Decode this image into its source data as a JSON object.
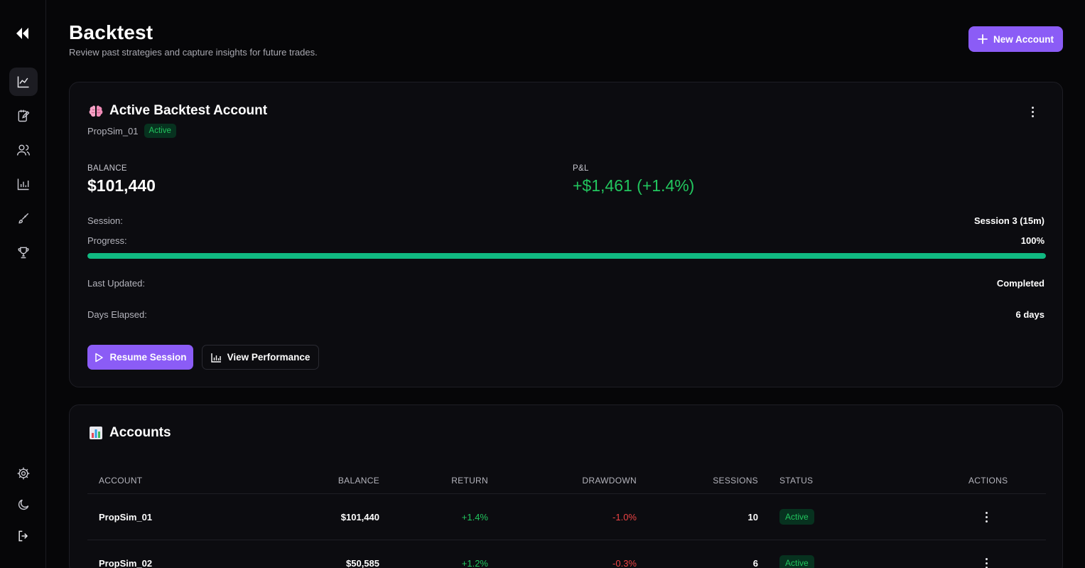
{
  "header": {
    "title": "Backtest",
    "subtitle": "Review past strategies and capture insights for future trades.",
    "new_account_label": "New Account"
  },
  "sidebar": {
    "items": [
      {
        "icon": "chart-line-icon",
        "active": true
      },
      {
        "icon": "journal-icon",
        "active": false
      },
      {
        "icon": "users-icon",
        "active": false
      },
      {
        "icon": "bar-chart-icon",
        "active": false
      },
      {
        "icon": "brush-icon",
        "active": false
      },
      {
        "icon": "trophy-icon",
        "active": false
      }
    ],
    "bottom_items": [
      {
        "icon": "settings-icon"
      },
      {
        "icon": "moon-icon"
      },
      {
        "icon": "logout-icon"
      }
    ]
  },
  "active_card": {
    "title": "Active Backtest Account",
    "account_name": "PropSim_01",
    "status": "Active",
    "balance_label": "BALANCE",
    "balance_value": "$101,440",
    "pnl_label": "P&L",
    "pnl_value": "+$1,461 (+1.4%)",
    "session_label": "Session:",
    "session_value": "Session 3 (15m)",
    "progress_label": "Progress:",
    "progress_value": "100%",
    "progress_fraction": 1.0,
    "last_updated_label": "Last Updated:",
    "last_updated_value": "Completed",
    "days_elapsed_label": "Days Elapsed:",
    "days_elapsed_value": "6 days",
    "resume_label": "Resume Session",
    "performance_label": "View Performance"
  },
  "accounts_card": {
    "title": "Accounts",
    "columns": [
      "ACCOUNT",
      "BALANCE",
      "RETURN",
      "DRAWDOWN",
      "SESSIONS",
      "STATUS",
      "ACTIONS"
    ],
    "rows": [
      {
        "account": "PropSim_01",
        "balance": "$101,440",
        "return": "+1.4%",
        "drawdown": "-1.0%",
        "sessions": "10",
        "status": "Active"
      },
      {
        "account": "PropSim_02",
        "balance": "$50,585",
        "return": "+1.2%",
        "drawdown": "-0.3%",
        "sessions": "6",
        "status": "Active"
      }
    ]
  },
  "colors": {
    "accent": "#8b5cf6",
    "positive": "#22c55e",
    "negative": "#ef4444",
    "progress": "#10b981"
  }
}
